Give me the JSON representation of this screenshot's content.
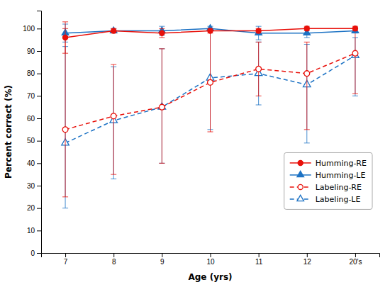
{
  "chart_data": {
    "type": "line",
    "xlabel": "Age (yrs)",
    "ylabel": "Percent correct (%)",
    "categories": [
      "7",
      "8",
      "9",
      "10",
      "11",
      "12",
      "20's"
    ],
    "series": [
      {
        "name": "Humming-RE",
        "color": "#e8100a",
        "marker": "circle",
        "line_style": "solid",
        "values": [
          96,
          99,
          98,
          99,
          99,
          100,
          100
        ],
        "errors": [
          7,
          1,
          2,
          1,
          1,
          1,
          1
        ]
      },
      {
        "name": "Humming-LE",
        "color": "#1c72c4",
        "marker": "triangle-up",
        "line_style": "solid",
        "values": [
          98,
          99,
          99,
          100,
          98,
          98,
          99
        ],
        "errors": [
          4,
          1,
          2,
          1,
          3,
          2,
          1
        ]
      },
      {
        "name": "Labeling-RE",
        "color": "#e8100a",
        "marker": "circle-open",
        "line_style": "dashed",
        "values": [
          55,
          61,
          65,
          76,
          82,
          80,
          89
        ],
        "errors_low": [
          30,
          26,
          25,
          22,
          12,
          25,
          18
        ],
        "errors_high": [
          45,
          23,
          26,
          24,
          12,
          14,
          10
        ]
      },
      {
        "name": "Labeling-LE",
        "color": "#1c72c4",
        "marker": "triangle-up-open",
        "line_style": "dashed",
        "values": [
          49,
          59,
          65,
          78,
          80,
          75,
          88
        ],
        "errors_low": [
          29,
          26,
          25,
          23,
          14,
          26,
          18
        ],
        "errors_high": [
          43,
          24,
          26,
          22,
          14,
          18,
          8
        ]
      }
    ],
    "ylim": [
      0,
      108
    ],
    "yticks": [
      0,
      10,
      20,
      30,
      40,
      50,
      60,
      70,
      80,
      90,
      100
    ],
    "grid": false,
    "legend": "lower right"
  }
}
